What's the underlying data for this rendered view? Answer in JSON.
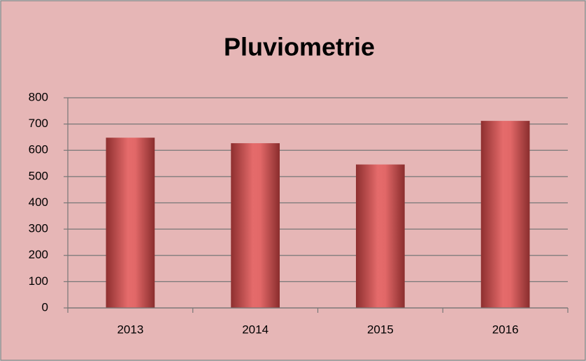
{
  "chart_data": {
    "type": "bar",
    "title": "Pluviometrie",
    "categories": [
      "2013",
      "2014",
      "2015",
      "2016"
    ],
    "values": [
      648,
      627,
      546,
      712
    ],
    "color": "#d05a5a",
    "ylim": [
      0,
      800
    ],
    "yticks": [
      0,
      100,
      200,
      300,
      400,
      500,
      600,
      700,
      800
    ],
    "grid": true
  }
}
